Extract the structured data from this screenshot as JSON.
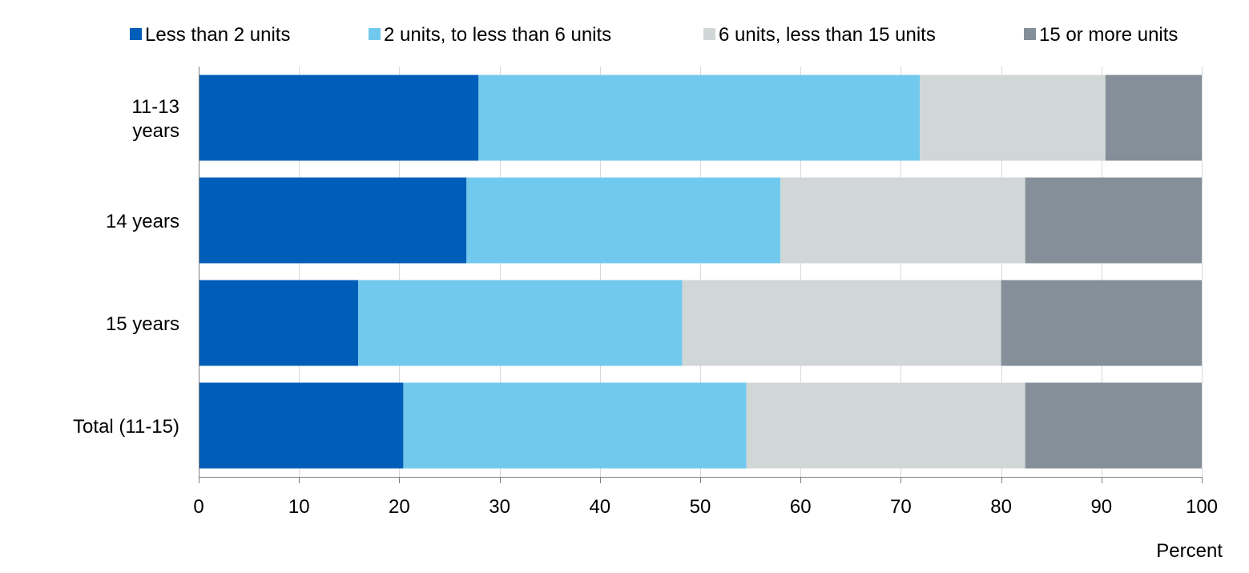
{
  "chart_data": {
    "type": "bar",
    "orientation": "horizontal",
    "stacked": true,
    "categories": [
      "11-13 years",
      "14 years",
      "15 years",
      "Total (11-15)"
    ],
    "category_lines": [
      [
        "11-13",
        "years"
      ],
      [
        "14 years"
      ],
      [
        "15 years"
      ],
      [
        "Total (11-15)"
      ]
    ],
    "series": [
      {
        "name": "Less than 2 units",
        "color": "#005EB8",
        "values": [
          27.9,
          26.7,
          15.9,
          20.4
        ]
      },
      {
        "name": "2 units, to less than 6 units",
        "color": "#71CAEE",
        "values": [
          44.0,
          31.3,
          32.3,
          34.2
        ]
      },
      {
        "name": "6 units, less than 15 units",
        "color": "#D1D6D7",
        "values": [
          18.5,
          24.4,
          31.8,
          27.8
        ]
      },
      {
        "name": "15 or more units",
        "color": "#848F99",
        "values": [
          9.6,
          17.6,
          20.0,
          17.6
        ]
      }
    ],
    "xlabel": "Percent",
    "ylabel": "",
    "xlim": [
      0,
      100
    ],
    "xticks": [
      0,
      10,
      20,
      30,
      40,
      50,
      60,
      70,
      80,
      90,
      100
    ],
    "grid": "vertical",
    "legend_position": "top"
  }
}
